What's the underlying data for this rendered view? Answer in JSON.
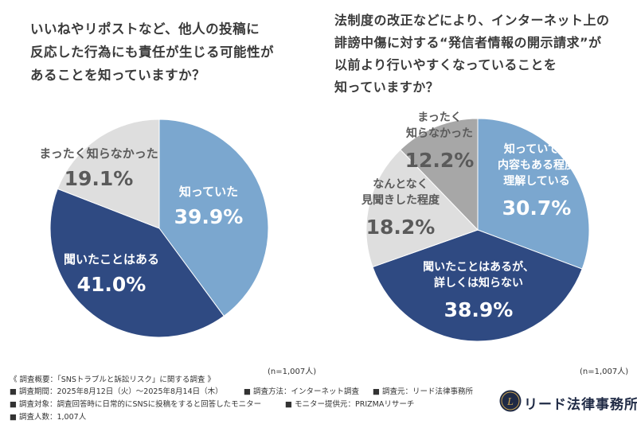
{
  "colors": {
    "dark_blue": "#2f4a82",
    "light_blue": "#7ba7cf",
    "light_gray": "#dedede",
    "mid_gray": "#a7a7a7",
    "label_white": "#ffffff",
    "label_dark": "#5a5a5a",
    "logo_navy": "#1f2a45",
    "logo_gold": "#c8a252"
  },
  "left_question": "いいねやリポストなど、他人の投稿に\n反応した行為にも責任が生じる可能性が\nあることを知っていますか？",
  "right_question": "法制度の改正などにより、インターネット上の\n誹謗中傷に対する“発信者情報の開示請求”が\n以前より行いやすくなっていることを\n知っていますか？",
  "chart_data": [
    {
      "type": "pie",
      "slices": [
        {
          "label": "知っていた",
          "value": 39.9,
          "value_text": "39.9%"
        },
        {
          "label": "聞いたことはある",
          "value": 41.0,
          "value_text": "41.0%"
        },
        {
          "label": "まったく知らなかった",
          "value": 19.1,
          "value_text": "19.1%"
        }
      ],
      "n": "(n=1,007人)"
    },
    {
      "type": "pie",
      "slices": [
        {
          "label": "知っていて、\n内容もある程度\n理解している",
          "value": 30.7,
          "value_text": "30.7%"
        },
        {
          "label": "聞いたことはあるが、\n詳しくは知らない",
          "value": 38.9,
          "value_text": "38.9%"
        },
        {
          "label": "なんとなく\n見聞きした程度",
          "value": 18.2,
          "value_text": "18.2%"
        },
        {
          "label": "まったく\n知らなかった",
          "value": 12.2,
          "value_text": "12.2%"
        }
      ],
      "n": "(n=1,007人)"
    }
  ],
  "survey": {
    "title": "《 調査概要：「SNSトラブルと訴訟リスク」に関する調査 》",
    "period": "■ 調査期間：2025年8月12日（火）～2025年8月14日（木）",
    "method": "■ 調査方法：インターネット調査",
    "source": "■ 調査元：リード法律事務所",
    "target": "■ 調査対象：調査回答時に日常的にSNSに投稿をすると回答したモニター",
    "provider": "■ モニター提供元：PRIZMAリサーチ",
    "count": "■ 調査人数：1,007人"
  },
  "logo": {
    "text": "リード法律事務所",
    "mark_text": "L"
  }
}
